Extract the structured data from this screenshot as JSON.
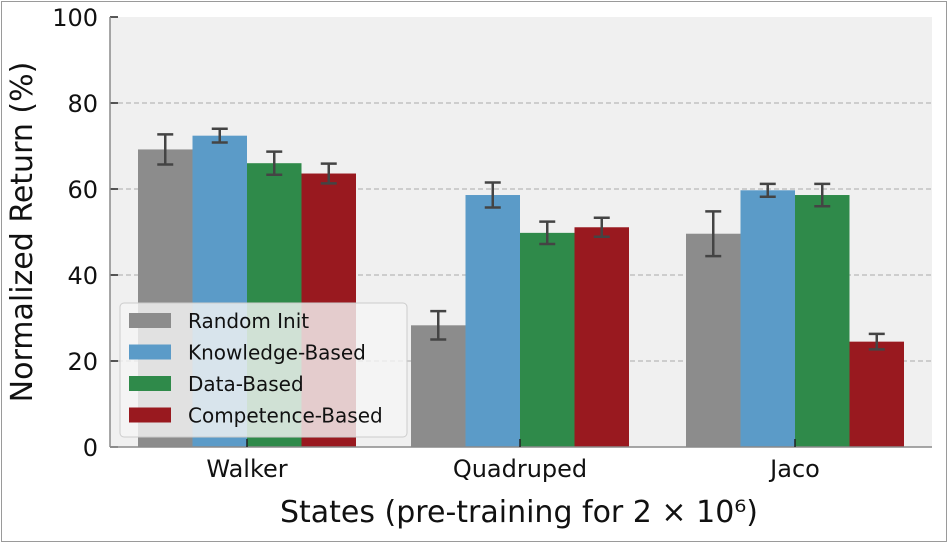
{
  "chart_data": {
    "type": "bar",
    "categories": [
      "Walker",
      "Quadruped",
      "Jaco"
    ],
    "series": [
      {
        "name": "Random Init",
        "color": "#8c8c8c",
        "values": [
          69.2,
          28.3,
          49.6
        ],
        "errors": [
          3.5,
          3.3,
          5.2
        ]
      },
      {
        "name": "Knowledge-Based",
        "color": "#5b9bc8",
        "values": [
          72.4,
          58.6,
          59.7
        ],
        "errors": [
          1.6,
          2.9,
          1.5
        ]
      },
      {
        "name": "Data-Based",
        "color": "#2f8a4a",
        "values": [
          66.0,
          49.8,
          58.6
        ],
        "errors": [
          2.7,
          2.6,
          2.6
        ]
      },
      {
        "name": "Competence-Based",
        "color": "#99191f",
        "values": [
          63.6,
          51.1,
          24.5
        ],
        "errors": [
          2.3,
          2.2,
          1.8
        ]
      }
    ],
    "xlabel": "States (pre-training for 2 × 10⁶)",
    "ylabel": "Normalized Return (%)",
    "ylim": [
      0,
      100
    ],
    "yticks": [
      "0",
      "20",
      "40",
      "60",
      "80",
      "100"
    ],
    "grid": true,
    "legend_position": "lower-left",
    "background": "#f0f0f0"
  }
}
